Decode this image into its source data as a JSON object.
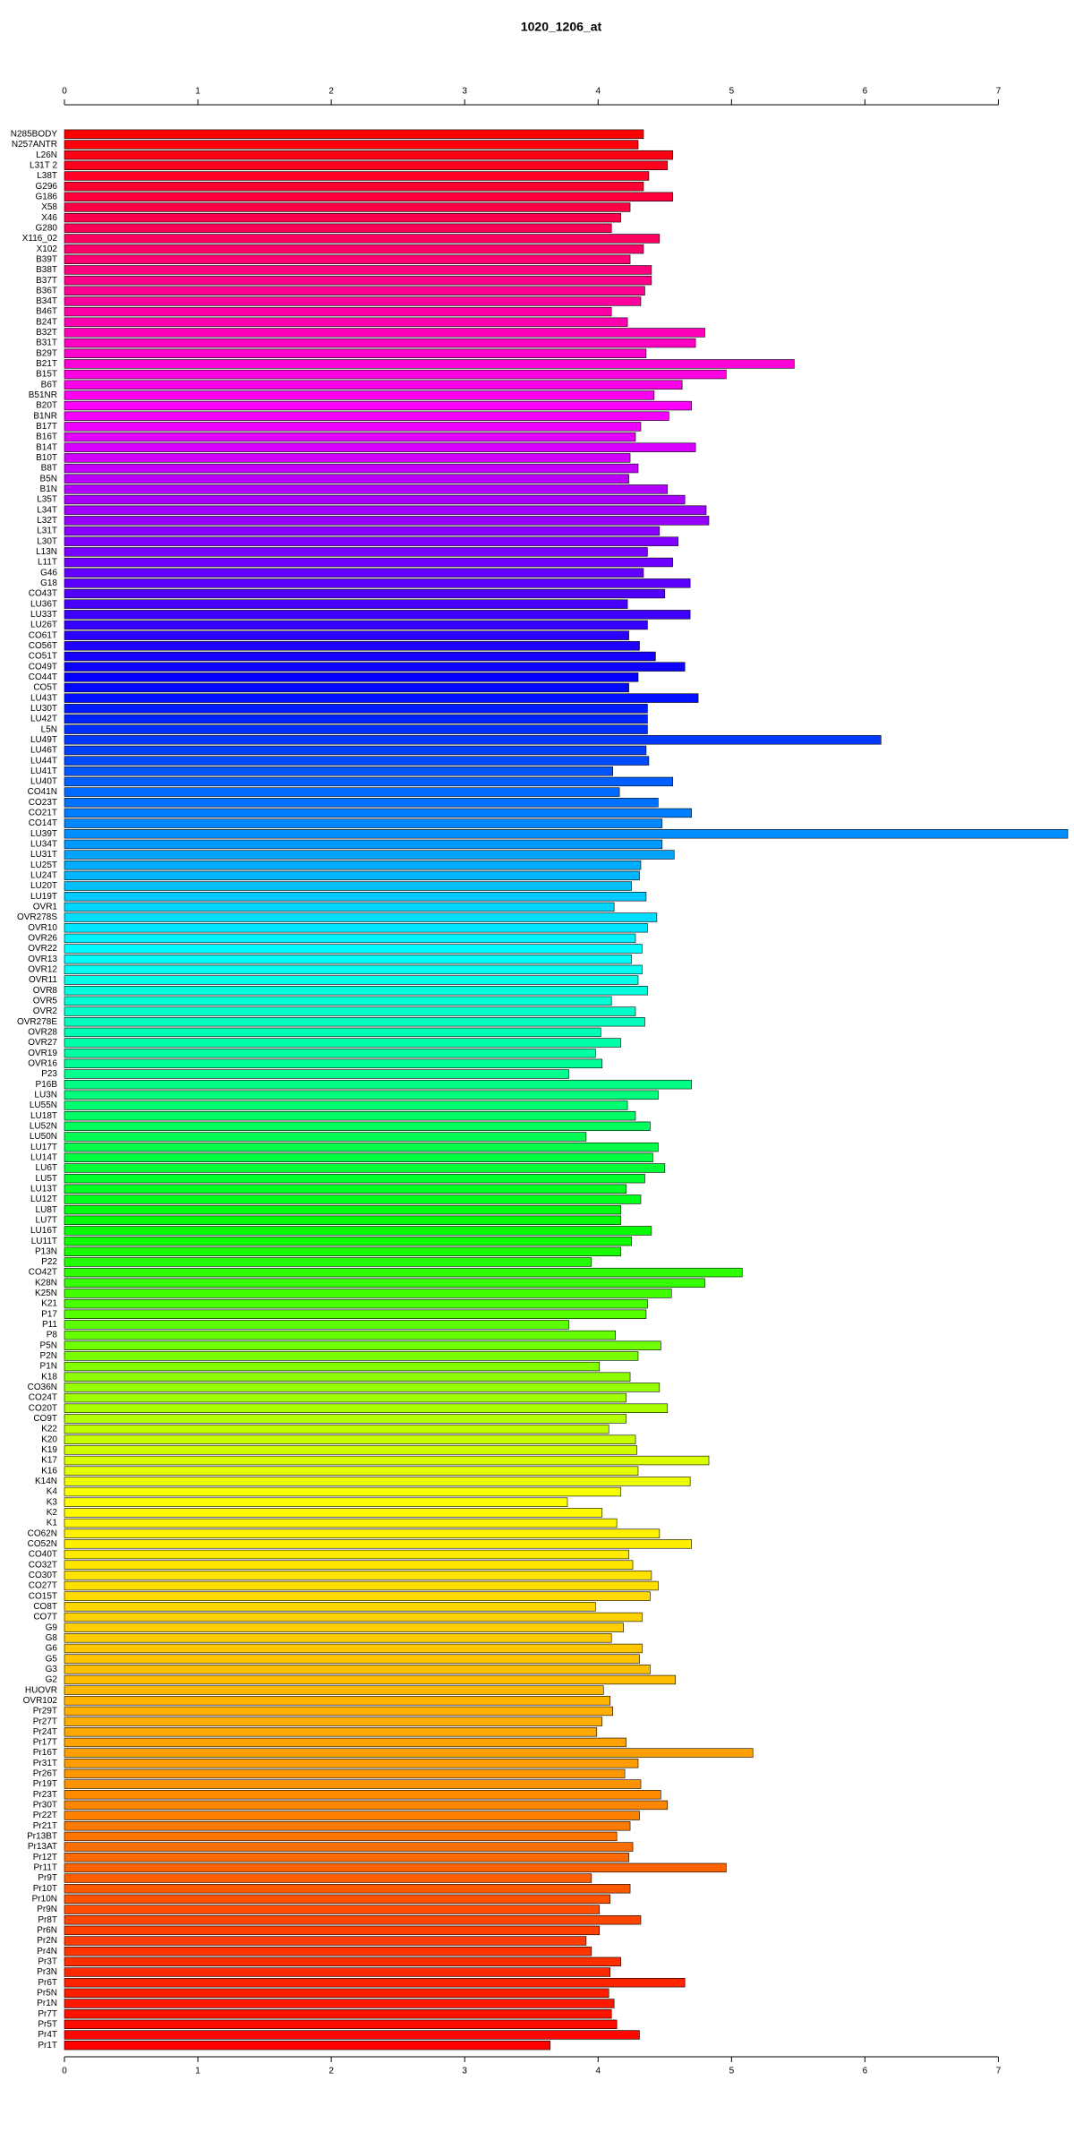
{
  "chart_data": {
    "type": "barh",
    "title": "1020_1206_at",
    "categories": [
      "N285BODY",
      "N257ANTR",
      "L26N",
      "L31T 2",
      "L38T",
      "G296",
      "G186",
      "X58",
      "X46",
      "G280",
      "X116_02",
      "X102",
      "B39T",
      "B38T",
      "B37T",
      "B36T",
      "B34T",
      "B46T",
      "B24T",
      "B32T",
      "B31T",
      "B29T",
      "B21T",
      "B15T",
      "B6T",
      "B51NR",
      "B20T",
      "B1NR",
      "B17T",
      "B16T",
      "B14T",
      "B10T",
      "B8T",
      "B5N",
      "B1N",
      "L35T",
      "L34T",
      "L32T",
      "L31T",
      "L30T",
      "L13N",
      "L11T",
      "G46",
      "G18",
      "CO43T",
      "LU36T",
      "LU33T",
      "LU26T",
      "CO61T",
      "CO56T",
      "CO51T",
      "CO49T",
      "CO44T",
      "CO5T",
      "LU43T",
      "LU30T",
      "LU42T",
      "L5N",
      "LU49T",
      "LU46T",
      "LU44T",
      "LU41T",
      "LU40T",
      "CO41N",
      "CO23T",
      "CO21T",
      "CO14T",
      "LU39T",
      "LU34T",
      "LU31T",
      "LU25T",
      "LU24T",
      "LU20T",
      "LU19T",
      "OVR1",
      "OVR278S",
      "OVR10",
      "OVR26",
      "OVR22",
      "OVR13",
      "OVR12",
      "OVR11",
      "OVR8",
      "OVR5",
      "OVR2",
      "OVR278E",
      "OVR28",
      "OVR27",
      "OVR19",
      "OVR16",
      "P23",
      "P16B",
      "LU3N",
      "LU55N",
      "LU18T",
      "LU52N",
      "LU50N",
      "LU17T",
      "LU14T",
      "LU6T",
      "LU5T",
      "LU13T",
      "LU12T",
      "LU8T",
      "LU7T",
      "LU16T",
      "LU11T",
      "P13N",
      "P22",
      "CO42T",
      "K28N",
      "K25N",
      "K21",
      "P17",
      "P11",
      "P8",
      "P5N",
      "P2N",
      "P1N",
      "K18",
      "CO36N",
      "CO24T",
      "CO20T",
      "CO9T",
      "K22",
      "K20",
      "K19",
      "K17",
      "K16",
      "K14N",
      "K4",
      "K3",
      "K2",
      "K1",
      "CO62N",
      "CO52N",
      "CO40T",
      "CO32T",
      "CO30T",
      "CO27T",
      "CO15T",
      "CO8T",
      "CO7T",
      "G9",
      "G8",
      "G6",
      "G5",
      "G3",
      "G2",
      "HUOVR",
      "OVR102",
      "Pr29T",
      "Pr27T",
      "Pr24T",
      "Pr17T",
      "Pr16T",
      "Pr31T",
      "Pr26T",
      "Pr19T",
      "Pr23T",
      "Pr30T",
      "Pr22T",
      "Pr21T",
      "Pr13BT",
      "Pr13AT",
      "Pr12T",
      "Pr11T",
      "Pr9T",
      "Pr10T",
      "Pr10N",
      "Pr9N",
      "Pr8T",
      "Pr6N",
      "Pr2N",
      "Pr4N",
      "Pr3T",
      "Pr3N",
      "Pr6T",
      "Pr5N",
      "Pr1N",
      "Pr7T",
      "Pr5T",
      "Pr4T",
      "Pr1T"
    ],
    "values": [
      4.34,
      4.3,
      4.56,
      4.52,
      4.38,
      4.34,
      4.56,
      4.24,
      4.17,
      4.1,
      4.46,
      4.34,
      4.24,
      4.4,
      4.4,
      4.35,
      4.32,
      4.1,
      4.22,
      4.8,
      4.73,
      4.36,
      5.47,
      4.96,
      4.63,
      4.42,
      4.7,
      4.53,
      4.32,
      4.28,
      4.73,
      4.24,
      4.3,
      4.23,
      4.52,
      4.65,
      4.81,
      4.83,
      4.46,
      4.6,
      4.37,
      4.56,
      4.34,
      4.69,
      4.5,
      4.22,
      4.69,
      4.37,
      4.23,
      4.31,
      4.43,
      4.65,
      4.3,
      4.23,
      4.75,
      4.37,
      4.37,
      4.37,
      6.12,
      4.36,
      4.38,
      4.11,
      4.56,
      4.16,
      4.45,
      4.7,
      4.48,
      7.52,
      4.48,
      4.57,
      4.32,
      4.31,
      4.25,
      4.36,
      4.12,
      4.44,
      4.37,
      4.28,
      4.33,
      4.25,
      4.33,
      4.3,
      4.37,
      4.1,
      4.28,
      4.35,
      4.02,
      4.17,
      3.98,
      4.03,
      3.78,
      4.7,
      4.45,
      4.22,
      4.28,
      4.39,
      3.91,
      4.45,
      4.41,
      4.5,
      4.35,
      4.21,
      4.32,
      4.17,
      4.17,
      4.4,
      4.25,
      4.17,
      3.95,
      5.08,
      4.8,
      4.55,
      4.37,
      4.36,
      3.78,
      4.13,
      4.47,
      4.3,
      4.01,
      4.24,
      4.46,
      4.21,
      4.52,
      4.21,
      4.08,
      4.28,
      4.29,
      4.83,
      4.3,
      4.69,
      4.17,
      3.77,
      4.03,
      4.14,
      4.46,
      4.7,
      4.23,
      4.26,
      4.4,
      4.45,
      4.39,
      3.98,
      4.33,
      4.19,
      4.1,
      4.33,
      4.31,
      4.39,
      4.58,
      4.04,
      4.09,
      4.11,
      4.03,
      3.99,
      4.21,
      5.16,
      4.3,
      4.2,
      4.32,
      4.47,
      4.52,
      4.31,
      4.24,
      4.14,
      4.26,
      4.23,
      4.96,
      3.95,
      4.24,
      4.09,
      4.01,
      4.32,
      4.01,
      3.91,
      3.95,
      4.17,
      4.09,
      4.65,
      4.08,
      4.12,
      4.1,
      4.14,
      4.31,
      3.64
    ],
    "colors": [
      "#ff0000",
      "#ff00ff",
      "#0000ff",
      "#00ffff",
      "#00ff00",
      "#ffff00",
      "#ff9900",
      "#ff0000"
    ],
    "xlim": [
      0,
      7.52
    ],
    "xticks": [
      0,
      1,
      2,
      3,
      4,
      5,
      6,
      7
    ]
  }
}
